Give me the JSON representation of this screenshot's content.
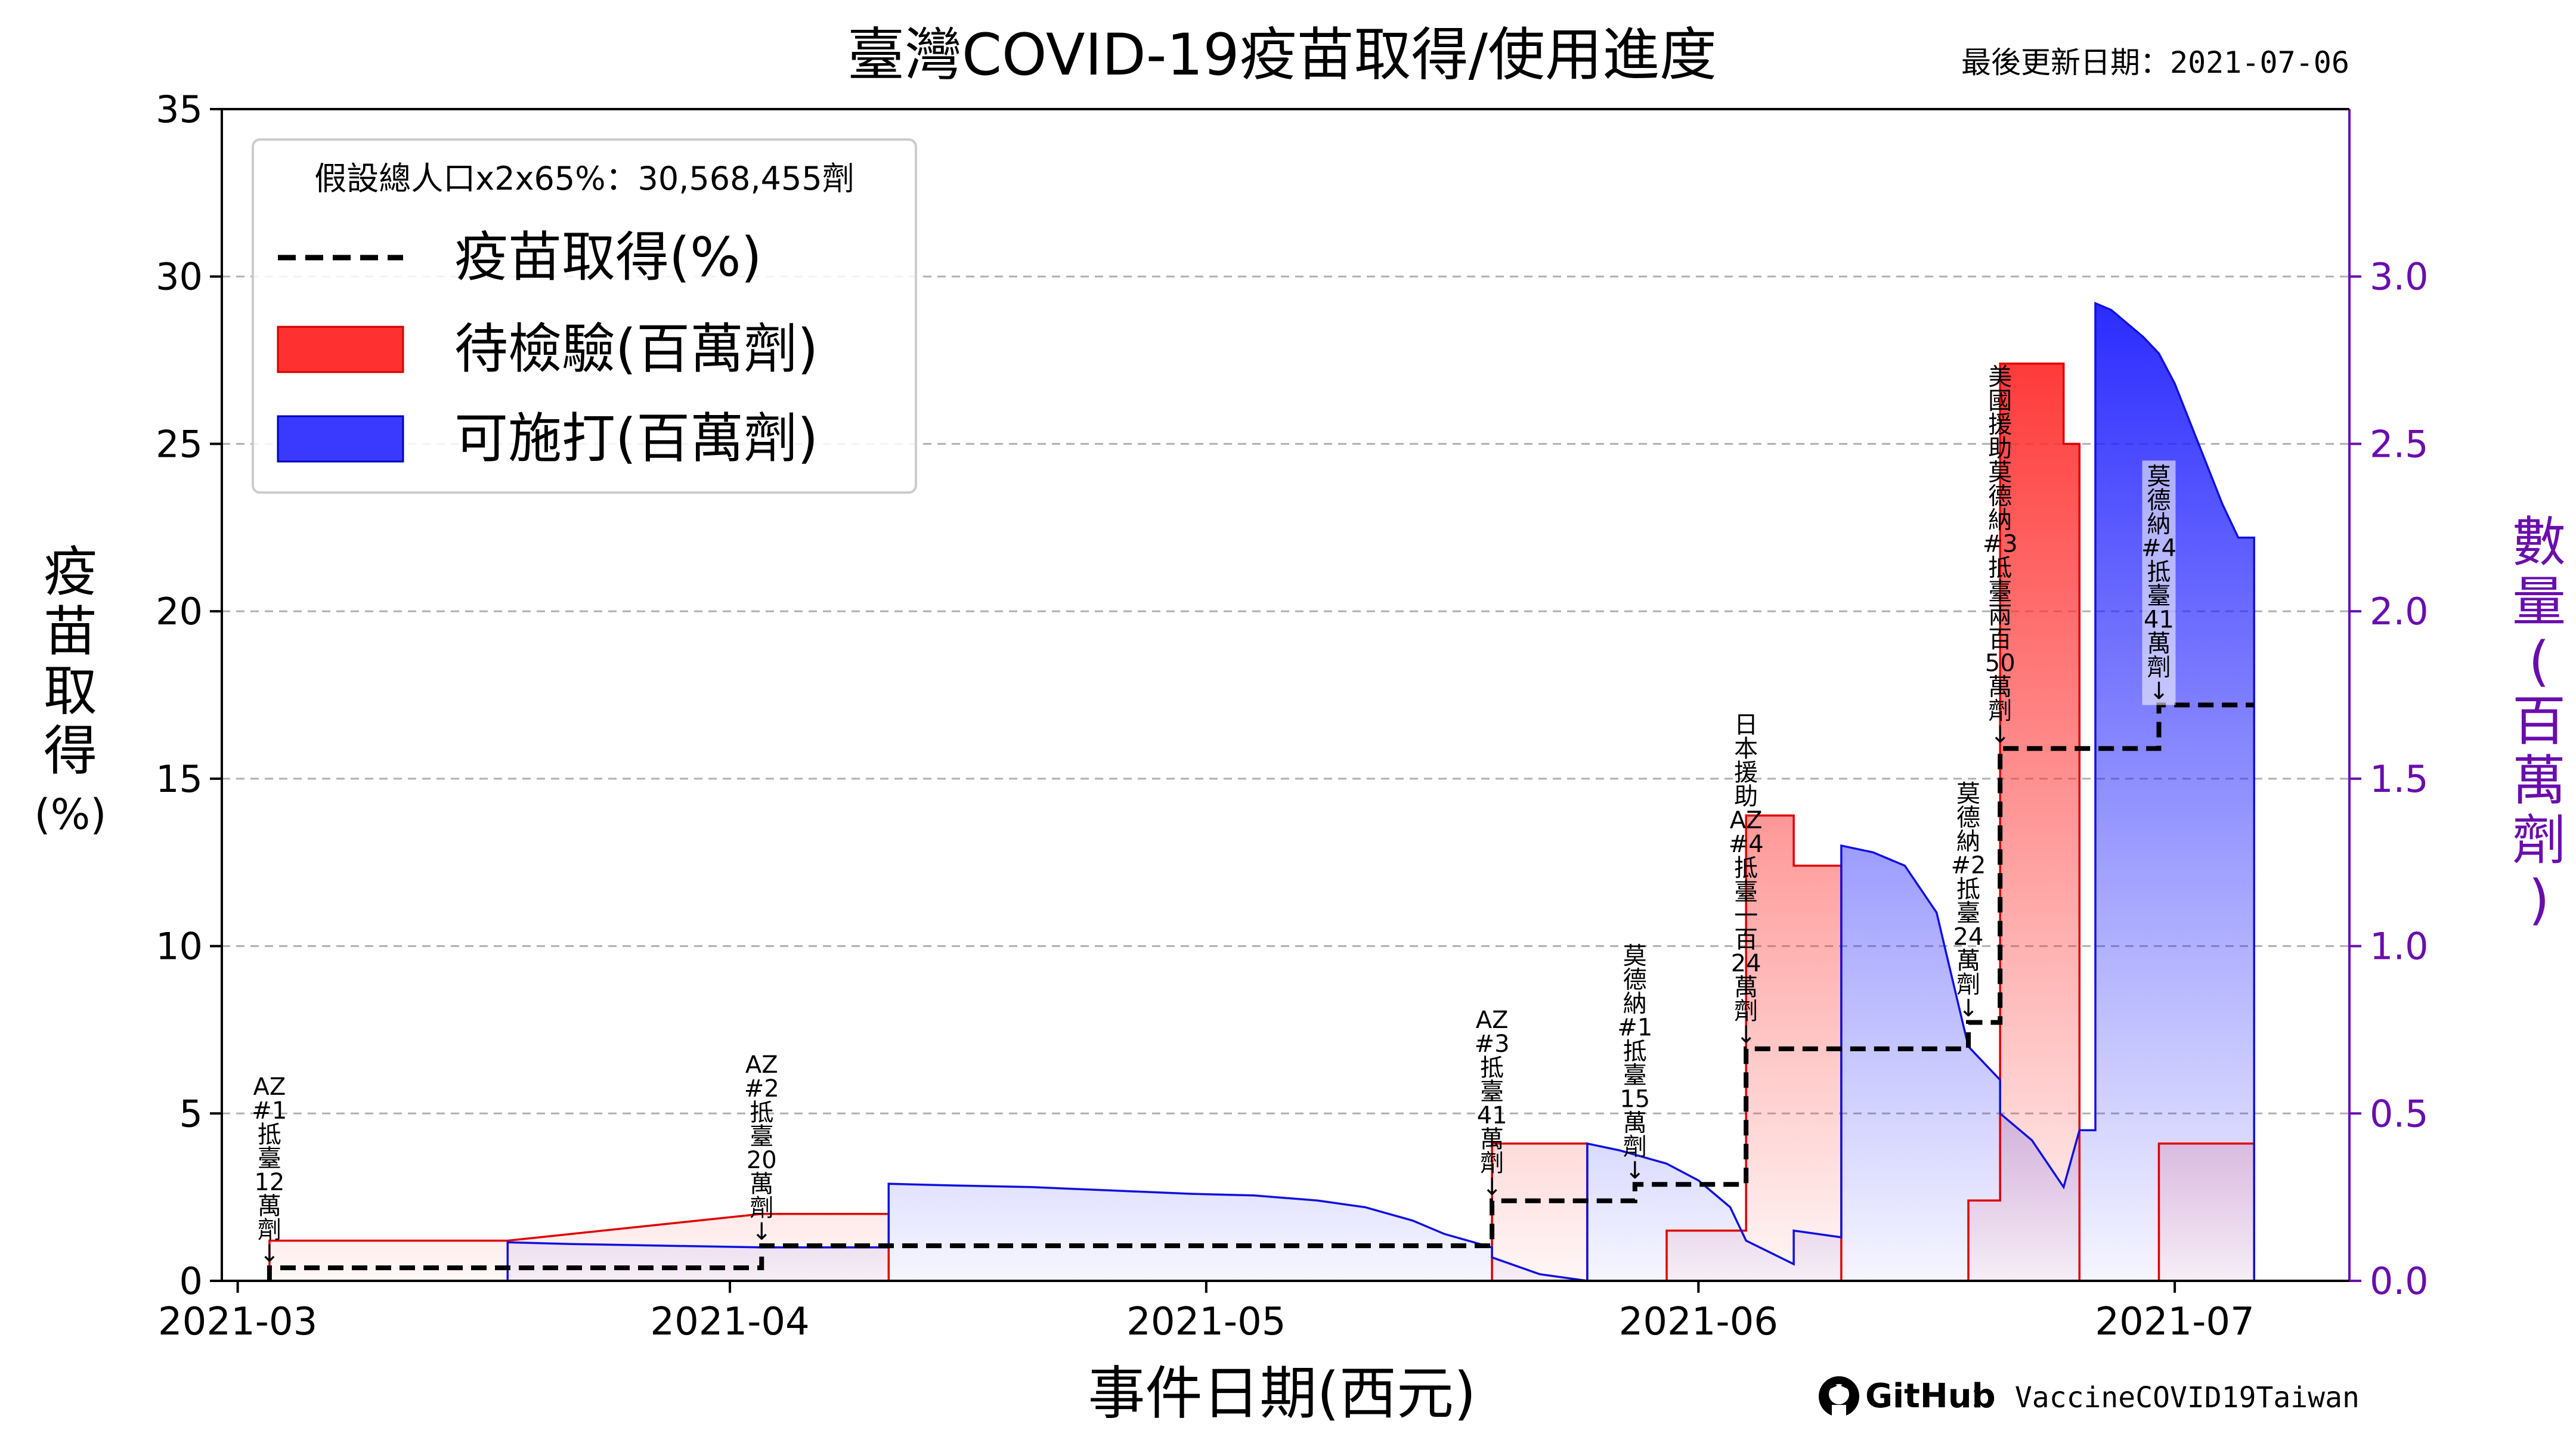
{
  "title": "臺灣COVID-19疫苗取得/使用進度",
  "update_text": "最後更新日期：2021-07-06",
  "footer": {
    "brand": "GitHub",
    "repo": "： VaccineCOVID19Taiwan"
  },
  "colors": {
    "pending": "#ff3030",
    "available": "#2020ff",
    "acquired": "#000000",
    "right_axis": "#6a0dad"
  },
  "chart_data": {
    "type": "line",
    "xlabel": "事件日期(西元)",
    "ylabel": "疫苗取得(%)",
    "y2label": "數量(百萬劑)",
    "x_range": [
      "2021-02-28",
      "2021-07-12"
    ],
    "ylim": [
      0,
      35
    ],
    "y2lim": [
      0,
      3.5
    ],
    "x_ticks": [
      "2021-03",
      "2021-04",
      "2021-05",
      "2021-06",
      "2021-07"
    ],
    "y_ticks": [
      "0",
      "5",
      "10",
      "15",
      "20",
      "25",
      "30",
      "35"
    ],
    "y2_ticks": [
      "0.0",
      "0.5",
      "1.0",
      "1.5",
      "2.0",
      "2.5",
      "3.0"
    ],
    "grid": "y-dashed",
    "legend": {
      "placement": "top-left",
      "header": "假設總人口x2x65%：30,568,455劑",
      "items": [
        "疫苗取得(%)",
        "待檢驗(百萬劑)",
        "可施打(百萬劑)"
      ]
    },
    "series": [
      {
        "name": "疫苗取得(%)",
        "axis": "left",
        "style": "dashed-step",
        "points": [
          [
            "2021-03-03",
            0.0
          ],
          [
            "2021-03-03",
            0.39
          ],
          [
            "2021-04-03",
            0.39
          ],
          [
            "2021-04-03",
            1.05
          ],
          [
            "2021-05-19",
            1.05
          ],
          [
            "2021-05-19",
            2.39
          ],
          [
            "2021-05-28",
            2.39
          ],
          [
            "2021-05-28",
            2.88
          ],
          [
            "2021-06-04",
            2.88
          ],
          [
            "2021-06-04",
            6.93
          ],
          [
            "2021-06-18",
            6.93
          ],
          [
            "2021-06-18",
            7.72
          ],
          [
            "2021-06-20",
            7.72
          ],
          [
            "2021-06-20",
            15.9
          ],
          [
            "2021-06-30",
            15.9
          ],
          [
            "2021-06-30",
            17.2
          ],
          [
            "2021-07-06",
            17.2
          ]
        ]
      },
      {
        "name": "待檢驗(百萬劑)",
        "axis": "right",
        "style": "filled-step",
        "points": [
          [
            "2021-03-03",
            0.0
          ],
          [
            "2021-03-03",
            0.12
          ],
          [
            "2021-03-18",
            0.12
          ],
          [
            "2021-04-03",
            0.2
          ],
          [
            "2021-04-11",
            0.2
          ],
          [
            "2021-04-11",
            0.0
          ],
          [
            "2021-05-19",
            0.0
          ],
          [
            "2021-05-19",
            0.41
          ],
          [
            "2021-05-25",
            0.41
          ],
          [
            "2021-05-25",
            0.0
          ],
          [
            "2021-05-30",
            0.0
          ],
          [
            "2021-05-30",
            0.15
          ],
          [
            "2021-06-04",
            0.15
          ],
          [
            "2021-06-04",
            1.39
          ],
          [
            "2021-06-07",
            1.39
          ],
          [
            "2021-06-07",
            1.24
          ],
          [
            "2021-06-10",
            1.24
          ],
          [
            "2021-06-10",
            0.0
          ],
          [
            "2021-06-18",
            0.0
          ],
          [
            "2021-06-18",
            0.24
          ],
          [
            "2021-06-20",
            0.24
          ],
          [
            "2021-06-20",
            2.74
          ],
          [
            "2021-06-24",
            2.74
          ],
          [
            "2021-06-24",
            2.5
          ],
          [
            "2021-06-25",
            2.5
          ],
          [
            "2021-06-25",
            0.0
          ],
          [
            "2021-06-30",
            0.0
          ],
          [
            "2021-06-30",
            0.41
          ],
          [
            "2021-07-06",
            0.41
          ],
          [
            "2021-07-06",
            0.0
          ]
        ]
      },
      {
        "name": "可施打(百萬劑)",
        "axis": "right",
        "style": "filled-step",
        "points": [
          [
            "2021-03-18",
            0.0
          ],
          [
            "2021-03-18",
            0.115
          ],
          [
            "2021-03-22",
            0.11
          ],
          [
            "2021-03-28",
            0.105
          ],
          [
            "2021-04-03",
            0.1
          ],
          [
            "2021-04-11",
            0.1
          ],
          [
            "2021-04-11",
            0.29
          ],
          [
            "2021-04-15",
            0.285
          ],
          [
            "2021-04-20",
            0.28
          ],
          [
            "2021-04-25",
            0.27
          ],
          [
            "2021-04-30",
            0.26
          ],
          [
            "2021-05-04",
            0.255
          ],
          [
            "2021-05-08",
            0.24
          ],
          [
            "2021-05-11",
            0.22
          ],
          [
            "2021-05-14",
            0.18
          ],
          [
            "2021-05-16",
            0.14
          ],
          [
            "2021-05-19",
            0.1
          ],
          [
            "2021-05-19",
            0.07
          ],
          [
            "2021-05-22",
            0.02
          ],
          [
            "2021-05-25",
            0.0
          ],
          [
            "2021-05-25",
            0.41
          ],
          [
            "2021-05-27",
            0.39
          ],
          [
            "2021-05-30",
            0.35
          ],
          [
            "2021-06-01",
            0.3
          ],
          [
            "2021-06-03",
            0.22
          ],
          [
            "2021-06-04",
            0.12
          ],
          [
            "2021-06-07",
            0.05
          ],
          [
            "2021-06-07",
            0.15
          ],
          [
            "2021-06-10",
            0.13
          ],
          [
            "2021-06-10",
            1.3
          ],
          [
            "2021-06-12",
            1.28
          ],
          [
            "2021-06-14",
            1.24
          ],
          [
            "2021-06-16",
            1.1
          ],
          [
            "2021-06-17",
            0.9
          ],
          [
            "2021-06-18",
            0.7
          ],
          [
            "2021-06-20",
            0.6
          ],
          [
            "2021-06-20",
            0.5
          ],
          [
            "2021-06-22",
            0.42
          ],
          [
            "2021-06-23",
            0.35
          ],
          [
            "2021-06-24",
            0.28
          ],
          [
            "2021-06-25",
            0.45
          ],
          [
            "2021-06-26",
            0.45
          ],
          [
            "2021-06-26",
            2.92
          ],
          [
            "2021-06-27",
            2.9
          ],
          [
            "2021-06-28",
            2.86
          ],
          [
            "2021-06-29",
            2.82
          ],
          [
            "2021-06-30",
            2.77
          ],
          [
            "2021-07-01",
            2.68
          ],
          [
            "2021-07-02",
            2.56
          ],
          [
            "2021-07-03",
            2.44
          ],
          [
            "2021-07-04",
            2.32
          ],
          [
            "2021-07-05",
            2.22
          ],
          [
            "2021-07-06",
            2.22
          ],
          [
            "2021-07-06",
            0.0
          ]
        ]
      }
    ],
    "annotations": [
      {
        "text": "AZ#1抵臺12萬劑",
        "lines": [
          "AZ",
          "#1",
          "抵",
          "臺",
          "12",
          "萬",
          "劑"
        ],
        "date": "2021-03-03",
        "arrow": "↓"
      },
      {
        "text": "AZ#2抵臺20萬劑",
        "lines": [
          "AZ",
          "#2",
          "抵",
          "臺",
          "20",
          "萬",
          "劑"
        ],
        "date": "2021-04-03",
        "arrow": "↓"
      },
      {
        "text": "AZ#3抵臺41萬劑",
        "lines": [
          "AZ",
          "#3",
          "抵",
          "臺",
          "41",
          "萬",
          "劑"
        ],
        "date": "2021-05-19",
        "arrow": "↓"
      },
      {
        "text": "莫德納#1抵臺15萬劑",
        "lines": [
          "莫",
          "德",
          "納",
          "#1",
          "抵",
          "臺",
          "15",
          "萬",
          "劑"
        ],
        "date": "2021-05-28",
        "arrow": "↓"
      },
      {
        "text": "日本援助AZ#4抵臺一百24萬劑",
        "lines": [
          "日",
          "本",
          "援",
          "助",
          "AZ",
          "#4",
          "抵",
          "臺",
          "一",
          "百",
          "24",
          "萬",
          "劑"
        ],
        "date": "2021-06-04",
        "arrow": "↓"
      },
      {
        "text": "莫德納#2抵臺24萬劑",
        "lines": [
          "莫",
          "德",
          "納",
          "#2",
          "抵",
          "臺",
          "24",
          "萬",
          "劑"
        ],
        "date": "2021-06-18",
        "arrow": "↓"
      },
      {
        "text": "美國援助莫德納#3抵臺兩百50萬劑",
        "lines": [
          "美",
          "國",
          "援",
          "助",
          "莫",
          "德",
          "納",
          "#3",
          "抵",
          "臺",
          "兩",
          "百",
          "50",
          "萬",
          "劑"
        ],
        "date": "2021-06-20",
        "arrow": "↓"
      },
      {
        "text": "莫德納#4抵臺41萬劑",
        "lines": [
          "莫",
          "德",
          "納",
          "#4",
          "抵",
          "臺",
          "41",
          "萬",
          "劑"
        ],
        "date": "2021-06-30",
        "arrow": "↓"
      }
    ]
  }
}
